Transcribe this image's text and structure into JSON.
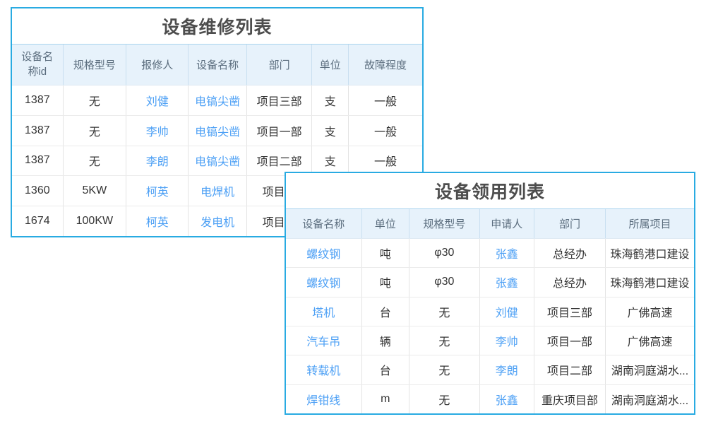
{
  "colors": {
    "table_border": "#29abe2",
    "header_background": "#e7f2fb",
    "header_text": "#5b6d7e",
    "title_text": "#4d4d4d",
    "body_text": "#333333",
    "link_text": "#4da0f5"
  },
  "repair_table": {
    "title": "设备维修列表",
    "headers": [
      "设备名称id",
      "规格型号",
      "报修人",
      "设备名称",
      "部门",
      "单位",
      "故障程度"
    ],
    "rows": [
      [
        "1387",
        "无",
        "刘健",
        "电镐尖凿",
        "项目三部",
        "支",
        "一般"
      ],
      [
        "1387",
        "无",
        "李帅",
        "电镐尖凿",
        "项目一部",
        "支",
        "一般"
      ],
      [
        "1387",
        "无",
        "李朗",
        "电镐尖凿",
        "项目二部",
        "支",
        "一般"
      ],
      [
        "1360",
        "5KW",
        "柯英",
        "电焊机",
        "项目一",
        "",
        ""
      ],
      [
        "1674",
        "100KW",
        "柯英",
        "发电机",
        "项目一",
        "",
        ""
      ]
    ]
  },
  "requisition_table": {
    "title": "设备领用列表",
    "headers": [
      "设备名称",
      "单位",
      "规格型号",
      "申请人",
      "部门",
      "所属项目"
    ],
    "rows": [
      [
        "螺纹钢",
        "吨",
        "φ30",
        "张鑫",
        "总经办",
        "珠海鹤港口建设"
      ],
      [
        "螺纹钢",
        "吨",
        "φ30",
        "张鑫",
        "总经办",
        "珠海鹤港口建设"
      ],
      [
        "塔机",
        "台",
        "无",
        "刘健",
        "项目三部",
        "广佛高速"
      ],
      [
        "汽车吊",
        "辆",
        "无",
        "李帅",
        "项目一部",
        "广佛高速"
      ],
      [
        "转载机",
        "台",
        "无",
        "李朗",
        "项目二部",
        "湖南洞庭湖水..."
      ],
      [
        "焊钳线",
        "m",
        "无",
        "张鑫",
        "重庆项目部",
        "湖南洞庭湖水..."
      ]
    ]
  }
}
